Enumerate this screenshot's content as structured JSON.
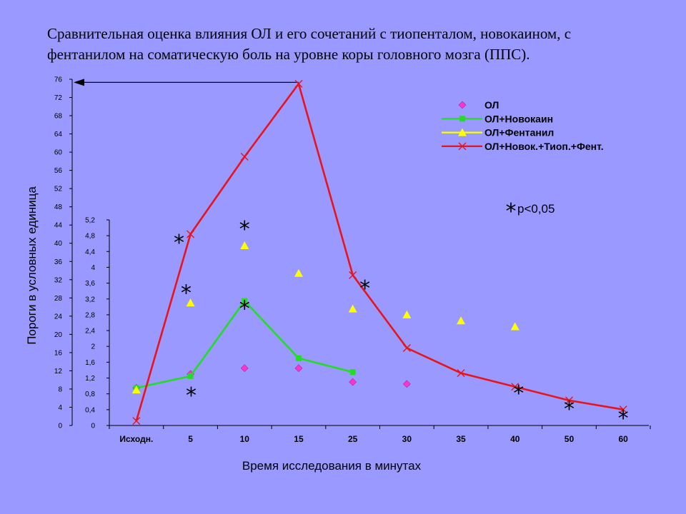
{
  "title": {
    "line1": "Сравнительная оценка влияния ОЛ и его сочетаний с тиопенталом, новокаином, с",
    "line2": "фентанилом на соматическую боль на уровне коры головного мозга (ППС)."
  },
  "chart_data": {
    "type": "line",
    "xlabel": "Время исследования в минутах",
    "ylabel": "Пороги в условных единица",
    "categories": [
      "Исходн.",
      "5",
      "10",
      "15",
      "25",
      "30",
      "35",
      "40",
      "50",
      "60"
    ],
    "y_axis_outer": {
      "range": [
        0,
        76
      ],
      "ticks": [
        "0",
        "4",
        "8",
        "12",
        "16",
        "20",
        "24",
        "28",
        "32",
        "36",
        "40",
        "44",
        "48",
        "52",
        "56",
        "60",
        "64",
        "68",
        "72",
        "76"
      ]
    },
    "y_axis_inner": {
      "range": [
        0,
        5.2
      ],
      "ticks": [
        "0",
        "0,4",
        "0,8",
        "1,2",
        "1,6",
        "2",
        "2,4",
        "2,8",
        "3,2",
        "3,6",
        "4",
        "4,4",
        "4,8",
        "5,2"
      ]
    },
    "series": [
      {
        "name": "ОЛ",
        "axis": "inner",
        "color": "#ff33cc",
        "marker": "diamond",
        "line": false,
        "values": [
          0.95,
          1.3,
          1.45,
          1.45,
          1.1,
          1.05,
          null,
          null,
          null,
          null
        ]
      },
      {
        "name": "ОЛ+Новокаин",
        "axis": "inner",
        "color": "#22dd22",
        "marker": "square",
        "line": true,
        "values": [
          0.95,
          1.25,
          3.15,
          1.7,
          1.35,
          null,
          null,
          null,
          null,
          null
        ]
      },
      {
        "name": "ОЛ+Фентанил",
        "axis": "inner",
        "color": "#ffff00",
        "marker": "triangle",
        "line": false,
        "values": [
          0.9,
          3.1,
          4.55,
          3.85,
          2.95,
          2.8,
          2.65,
          2.5,
          null,
          null
        ]
      },
      {
        "name": "ОЛ+Новок.+Тиоп.+Фент.",
        "axis": "outer",
        "color": "#e8141a",
        "marker": "x",
        "line": true,
        "values": [
          1,
          42,
          59,
          75,
          33,
          17,
          11.5,
          8.5,
          5.5,
          3.5
        ]
      }
    ],
    "significance": {
      "symbol": "*",
      "label": "p<0,05",
      "marks": [
        {
          "category": "5",
          "y_outer": 41.5,
          "dx": -16
        },
        {
          "category": "5",
          "y_outer": 30.5,
          "dx": -6
        },
        {
          "category": "5",
          "y_outer": 8,
          "dx": 1
        },
        {
          "category": "10",
          "y_outer": 44.5,
          "dx": 0
        },
        {
          "category": "10",
          "y_outer": 27,
          "dx": 0
        },
        {
          "category": "25",
          "y_outer": 31.5,
          "dx": 17
        },
        {
          "category": "40",
          "y_outer": 8.5,
          "dx": 5
        },
        {
          "category": "50",
          "y_outer": 5,
          "dx": 0
        },
        {
          "category": "60",
          "y_outer": 3,
          "dx": 0
        }
      ]
    },
    "peak_arrow": {
      "from_category": "15",
      "to_axis": "outer",
      "value": 75
    },
    "legend_position": "top-right",
    "grid": false
  }
}
